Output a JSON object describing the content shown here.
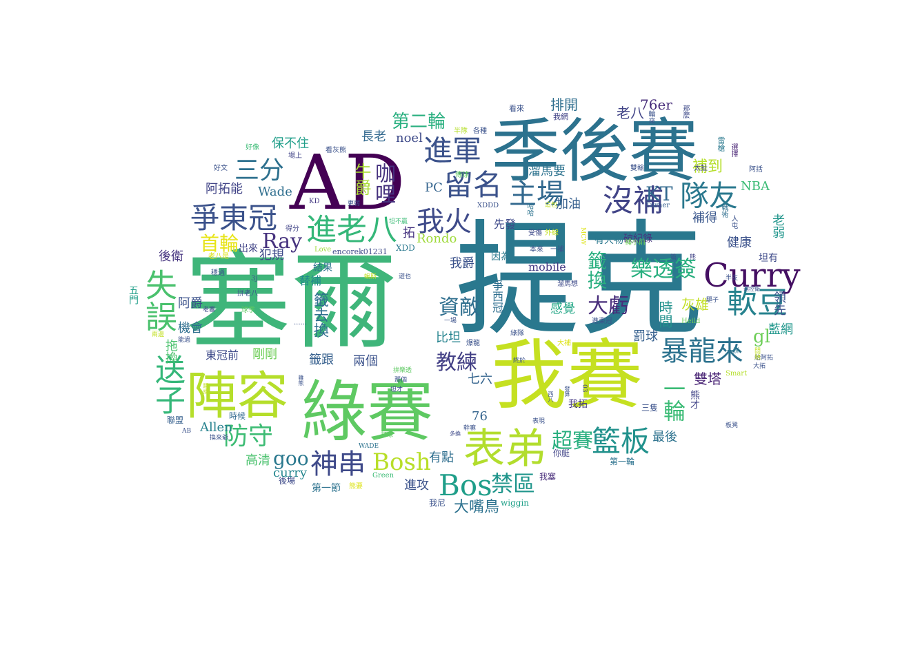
{
  "words": [
    {
      "text": "塞爾",
      "color": "#3fb57a"
    },
    {
      "text": "提克",
      "color": "#2a788e"
    },
    {
      "text": "AD",
      "color": "#440154"
    },
    {
      "text": "季後賽",
      "color": "#2c728e"
    },
    {
      "text": "我賽",
      "color": "#c5e021"
    },
    {
      "text": "綠賽",
      "color": "#5ec962"
    },
    {
      "text": "陣容",
      "color": "#b5de2b"
    },
    {
      "text": "表弟",
      "color": "#b2dd2d"
    },
    {
      "text": "Curry",
      "color": "#440f62"
    },
    {
      "text": "進軍",
      "color": "#3b528b"
    },
    {
      "text": "留名",
      "color": "#3b528b"
    },
    {
      "text": "沒補",
      "color": "#414487"
    },
    {
      "text": "隊友",
      "color": "#2a788e"
    },
    {
      "text": "爭東冠",
      "color": "#3b528b"
    },
    {
      "text": "進老八",
      "color": "#35b779"
    },
    {
      "text": "我火",
      "color": "#3e4a89"
    },
    {
      "text": "主場",
      "color": "#31688e"
    },
    {
      "text": "三分",
      "color": "#2d708e"
    },
    {
      "text": "軟豆",
      "color": "#26828e"
    },
    {
      "text": "暴龍來",
      "color": "#2c728e"
    },
    {
      "text": "防守",
      "color": "#3dbc74"
    },
    {
      "text": "籃板",
      "color": "#21918c"
    },
    {
      "text": "神串",
      "color": "#3e4989"
    },
    {
      "text": "Bosh",
      "color": "#b8de29"
    },
    {
      "text": "Bos",
      "color": "#1f9e89"
    },
    {
      "text": "禁區",
      "color": "#1f958b"
    },
    {
      "text": "Ray",
      "color": "#46327e"
    },
    {
      "text": "首輪",
      "color": "#e7e419"
    },
    {
      "text": "超賽",
      "color": "#29af7f"
    },
    {
      "text": "資敵",
      "color": "#2e6e8e"
    },
    {
      "text": "教練",
      "color": "#423f85"
    },
    {
      "text": "樂透簽",
      "color": "#29af7f"
    },
    {
      "text": "大虧",
      "color": "#472c7a"
    },
    {
      "text": "第二輪",
      "color": "#29af7f"
    },
    {
      "text": "送子",
      "color": "#35b779"
    },
    {
      "text": "失誤",
      "color": "#4ac16d"
    },
    {
      "text": "goo",
      "color": "#2a788e"
    },
    {
      "text": "Wade",
      "color": "#2e6e8e"
    },
    {
      "text": "PC",
      "color": "#33638d"
    },
    {
      "text": "KT",
      "color": "#31688e"
    },
    {
      "text": "NBA",
      "color": "#3bbb75"
    },
    {
      "text": "76er",
      "color": "#472c7a"
    },
    {
      "text": "noel",
      "color": "#3e4a89"
    },
    {
      "text": "Rondo",
      "color": "#9fda3a"
    },
    {
      "text": "Allen",
      "color": "#26828e"
    },
    {
      "text": "curry",
      "color": "#24868e"
    },
    {
      "text": "mobile",
      "color": "#443983"
    },
    {
      "text": "有點",
      "color": "#2e6e8e"
    },
    {
      "text": "大嘴鳥",
      "color": "#2c718e"
    },
    {
      "text": "高清",
      "color": "#4ac16d"
    },
    {
      "text": "後衛",
      "color": "#463480"
    },
    {
      "text": "犯規",
      "color": "#3e4a89"
    },
    {
      "text": "阿拓能",
      "color": "#414487"
    },
    {
      "text": "補到",
      "color": "#b5de2b"
    },
    {
      "text": "補得",
      "color": "#39568c"
    },
    {
      "text": "健康",
      "color": "#3b528b"
    },
    {
      "text": "罰球",
      "color": "#355f8d"
    },
    {
      "text": "藍網",
      "color": "#1f968b"
    },
    {
      "text": "雙塔",
      "color": "#482374"
    },
    {
      "text": "灰雄",
      "color": "#c2df23"
    },
    {
      "text": "最後",
      "color": "#2c728e"
    },
    {
      "text": "感覺",
      "color": "#21a685"
    },
    {
      "text": "比坦",
      "color": "#25838e"
    },
    {
      "text": "兩個",
      "color": "#3b528b"
    },
    {
      "text": "拓",
      "color": "#463480"
    },
    {
      "text": "七六",
      "color": "#33638d"
    },
    {
      "text": "76",
      "color": "#33638d"
    },
    {
      "text": "進攻",
      "color": "#3b528b"
    },
    {
      "text": "第一節",
      "color": "#2c728e"
    },
    {
      "text": "籤跟",
      "color": "#355f8d"
    },
    {
      "text": "剛剛",
      "color": "#6ece58"
    },
    {
      "text": "東冠前",
      "color": "#3e4a89"
    },
    {
      "text": "機會",
      "color": "#2e6e8e"
    },
    {
      "text": "阿爵",
      "color": "#3b528b"
    },
    {
      "text": "替補",
      "color": "#238a8d"
    },
    {
      "text": "結果",
      "color": "#2c728e"
    },
    {
      "text": "出來",
      "color": "#414487"
    },
    {
      "text": "我爵",
      "color": "#3b528b"
    },
    {
      "text": "長老",
      "color": "#31688e"
    },
    {
      "text": "保不住",
      "color": "#1f9e89"
    },
    {
      "text": "排開",
      "color": "#2e6e8e"
    },
    {
      "text": "老八",
      "color": "#414487"
    },
    {
      "text": "加油",
      "color": "#355f8d"
    },
    {
      "text": "溜馬要",
      "color": "#2c728e"
    },
    {
      "text": "破紀錄",
      "color": "#46327e"
    },
    {
      "text": "有大物",
      "color": "#2a788e"
    },
    {
      "text": "先發",
      "color": "#3e4989"
    },
    {
      "text": "因為",
      "color": "#2a788e"
    },
    {
      "text": "我拓",
      "color": "#443983"
    },
    {
      "text": "三隻",
      "color": "#3b528b"
    },
    {
      "text": "第一輪",
      "color": "#2c728e"
    },
    {
      "text": "我塞",
      "color": "#472c7a"
    },
    {
      "text": "我尼",
      "color": "#3b528b"
    },
    {
      "text": "你艇",
      "color": "#414487"
    },
    {
      "text": "聯盟",
      "color": "#355f8d"
    },
    {
      "text": "時候",
      "color": "#31688e"
    },
    {
      "text": "後場",
      "color": "#3e4a89"
    },
    {
      "text": "Green",
      "color": "#3bbb75"
    },
    {
      "text": "熊要",
      "color": "#dde318"
    },
    {
      "text": "wiggin",
      "color": "#1fa088"
    },
    {
      "text": "encorek01231",
      "color": "#3e4a89"
    },
    {
      "text": "XDD",
      "color": "#2a788e"
    },
    {
      "text": "XDDD",
      "color": "#3b528b"
    },
    {
      "text": "Love",
      "color": "#9fda3a"
    },
    {
      "text": "Turner",
      "color": "#355f8d"
    },
    {
      "text": "Heild",
      "color": "#6ece58"
    },
    {
      "text": "Smart",
      "color": "#b5de2b"
    },
    {
      "text": "KD",
      "color": "#443983"
    },
    {
      "text": "AB",
      "color": "#3b528b"
    },
    {
      "text": "WADE",
      "color": "#2c728e"
    },
    {
      "text": "MCW",
      "color": "#dde318"
    },
    {
      "text": "03",
      "color": "#414487"
    },
    {
      "text": "gl",
      "color": "#6ece58"
    },
    {
      "text": "牛爵",
      "color": "#a8db34"
    },
    {
      "text": "咖哩",
      "color": "#46327e"
    },
    {
      "text": "籤去換",
      "color": "#2e6e8e"
    },
    {
      "text": "籤換",
      "color": "#29af7f"
    },
    {
      "text": "一輪",
      "color": "#3bbb75"
    },
    {
      "text": "熊才",
      "color": "#414487"
    },
    {
      "text": "時間",
      "color": "#21918c"
    },
    {
      "text": "老弱",
      "color": "#1f958b"
    },
    {
      "text": "領先",
      "color": "#3b528b"
    },
    {
      "text": "爭西冠",
      "color": "#2e6e8e"
    },
    {
      "text": "拖換",
      "color": "#4ac16d"
    },
    {
      "text": "五門",
      "color": "#1f9e89"
    },
    {
      "text": "坦有",
      "color": "#3e4a89"
    },
    {
      "text": "看來",
      "color": "#3b528b"
    },
    {
      "text": "我網",
      "color": "#414487"
    },
    {
      "text": "輪來",
      "color": "#3b528b"
    },
    {
      "text": "那麼",
      "color": "#3e4a89"
    },
    {
      "text": "雷槍",
      "color": "#2a788e"
    },
    {
      "text": "選擇",
      "color": "#482374"
    },
    {
      "text": "太扯",
      "color": "#414487"
    },
    {
      "text": "阿括",
      "color": "#3b528b"
    },
    {
      "text": "戰術",
      "color": "#2e6e8e"
    },
    {
      "text": "人屯",
      "color": "#3b528b"
    },
    {
      "text": "雙輸",
      "color": "#3b528b"
    },
    {
      "text": "傳球",
      "color": "#5ec962"
    },
    {
      "text": "哈哈",
      "color": "#2c728e"
    },
    {
      "text": "受傷",
      "color": "#3e4a89"
    },
    {
      "text": "外線",
      "color": "#c2df23"
    },
    {
      "text": "本來",
      "color": "#3b528b"
    },
    {
      "text": "一補",
      "color": "#3b528b"
    },
    {
      "text": "補小前",
      "color": "#6ece58"
    },
    {
      "text": "溜馬想",
      "color": "#3e4a89"
    },
    {
      "text": "進東冠",
      "color": "#3b528b"
    },
    {
      "text": "大補",
      "color": "#dde318"
    },
    {
      "text": "給阿拓",
      "color": "#3b528b"
    },
    {
      "text": "一拼",
      "color": "#2a788e"
    },
    {
      "text": "問題",
      "color": "#c2df23"
    },
    {
      "text": "板凳",
      "color": "#3b528b"
    },
    {
      "text": "好像",
      "color": "#3bbb75"
    },
    {
      "text": "好文",
      "color": "#3b528b"
    },
    {
      "text": "場上",
      "color": "#414487"
    },
    {
      "text": "看灰熊",
      "color": "#3b528b"
    },
    {
      "text": "半隊",
      "color": "#b5de2b"
    },
    {
      "text": "各種",
      "color": "#3b528b"
    },
    {
      "text": "得分",
      "color": "#414487"
    },
    {
      "text": "老八是",
      "color": "#dde318"
    },
    {
      "text": "穩過",
      "color": "#3b528b"
    },
    {
      "text": "拼老八",
      "color": "#3b528b"
    },
    {
      "text": "老塞",
      "color": "#3e4a89"
    },
    {
      "text": "球季",
      "color": "#5ec962"
    },
    {
      "text": "兩邊",
      "color": "#c2df23"
    },
    {
      "text": "能過",
      "color": "#3b528b"
    },
    {
      "text": "一場",
      "color": "#3b528b"
    },
    {
      "text": "爆龍",
      "color": "#3b528b"
    },
    {
      "text": "綠隊",
      "color": "#3b528b"
    },
    {
      "text": "坦不贏",
      "color": "#3bbb75"
    },
    {
      "text": "遊也",
      "color": "#3b528b"
    },
    {
      "text": "蝙斯",
      "color": "#c2df23"
    },
    {
      "text": "拚樂透",
      "color": "#5ec962"
    },
    {
      "text": "那個",
      "color": "#3b528b"
    },
    {
      "text": "坦才",
      "color": "#3b528b"
    },
    {
      "text": "打球",
      "color": "#5ec962"
    },
    {
      "text": "多換",
      "color": "#3e4a89"
    },
    {
      "text": "幹嘛",
      "color": "#3b528b"
    },
    {
      "text": "表現",
      "color": "#3b528b"
    },
    {
      "text": "終於",
      "color": "#3b528b"
    },
    {
      "text": "換來爺",
      "color": "#3b528b"
    },
    {
      "text": "大拓",
      "color": "#3b528b"
    },
    {
      "text": "篇",
      "color": "#3b528b"
    },
    {
      "text": "熊",
      "color": "#414487"
    },
    {
      "text": "3j",
      "color": "#3b528b"
    },
    {
      "text": "......",
      "color": "#3b528b"
    },
    {
      "text": "更弱",
      "color": "#3b528b"
    },
    {
      "text": "這包",
      "color": "#c2df23"
    },
    {
      "text": "這包",
      "color": "#c2df23"
    },
    {
      "text": "半支",
      "color": "#3b528b"
    },
    {
      "text": "驅子",
      "color": "#3b528b"
    },
    {
      "text": "西八",
      "color": "#3b528b"
    },
    {
      "text": "雞熊",
      "color": "#3b528b"
    },
    {
      "text": "發算",
      "color": "#3b528b"
    },
    {
      "text": "選控衛",
      "color": "#3b528b"
    },
    {
      "text": "瞬換",
      "color": "#c2df23"
    }
  ]
}
